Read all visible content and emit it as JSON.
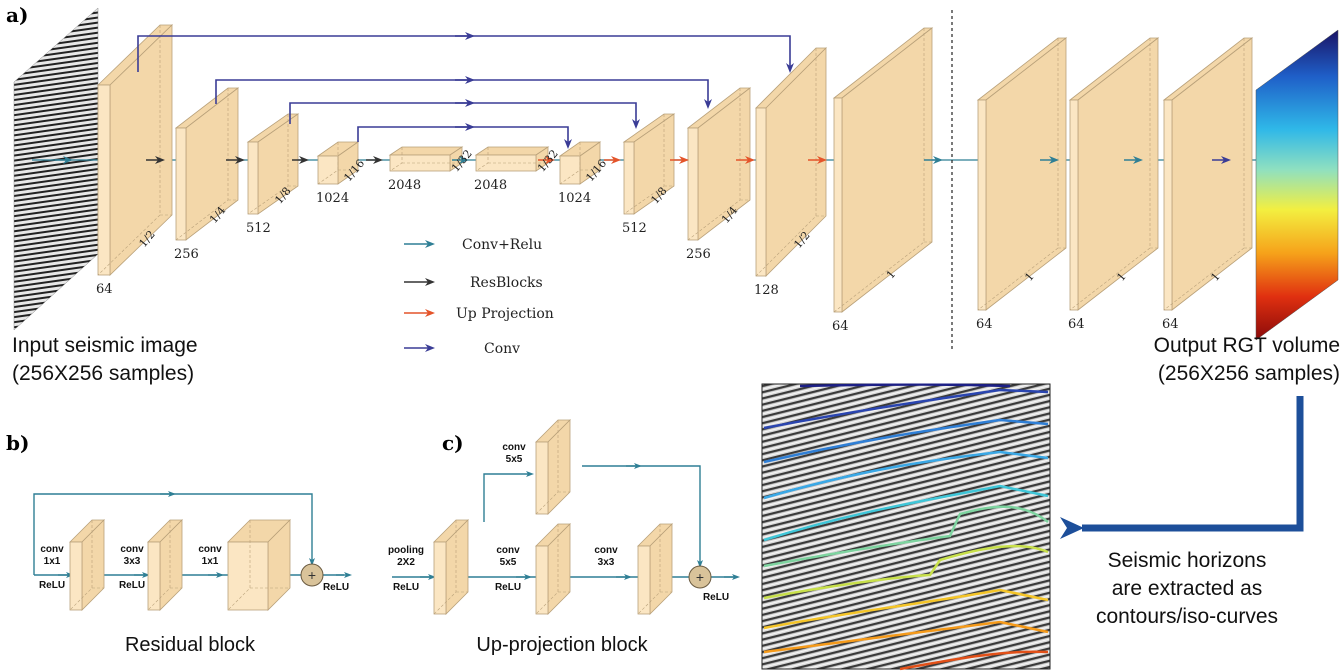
{
  "panel_labels": {
    "a": "a)",
    "b": "b)",
    "c": "c)"
  },
  "input_caption": [
    "Input seismic image",
    "(256X256 samples)"
  ],
  "output_caption": [
    "Output RGT volume",
    "(256X256 samples)"
  ],
  "horizon_caption": [
    "Seismic horizons",
    "are extracted as",
    "contours/iso-curves"
  ],
  "legend": [
    {
      "label": "Conv+Relu",
      "color": "#2f7f95"
    },
    {
      "label": "ResBlocks",
      "color": "#333333"
    },
    {
      "label": "Up Projection",
      "color": "#e4542a"
    },
    {
      "label": "Conv",
      "color": "#3a3c96"
    }
  ],
  "colors": {
    "block_face": "#fbe6c3",
    "block_side": "#f3d7a9",
    "block_edge": "#b9a17a",
    "skip": "#3a3c96",
    "conv_relu": "#2f7f95",
    "resblock": "#333333",
    "upproj": "#e4542a",
    "big_arrow": "#1d4f9a"
  },
  "block_labels": {
    "e1_ch": "64",
    "e1_sc": "1/2",
    "e2_ch": "256",
    "e2_sc": "1/4",
    "e3_ch": "512",
    "e3_sc": "1/8",
    "e4_ch": "1024",
    "e4_sc": "1/16",
    "e5_ch": "2048",
    "e5_sc": "1/32",
    "d5_ch": "2048",
    "d5_sc": "1/32",
    "d4_ch": "1024",
    "d4_sc": "1/16",
    "d3_ch": "512",
    "d3_sc": "1/8",
    "d2_ch": "256",
    "d2_sc": "1/4",
    "d1_ch": "128",
    "d1_sc": "1/2",
    "f1_ch": "64",
    "f1_sc": "1",
    "f2_ch": "64",
    "f2_sc": "1",
    "f3_ch": "64",
    "f3_sc": "1",
    "f4_ch": "64",
    "f4_sc": "1"
  },
  "residual": {
    "title": "Residual block",
    "conv1": [
      "conv",
      "1x1"
    ],
    "conv2": [
      "conv",
      "3x3"
    ],
    "conv3": [
      "conv",
      "1x1"
    ],
    "relu": "ReLU"
  },
  "upproj": {
    "title": "Up-projection block",
    "pool": [
      "pooling",
      "2X2"
    ],
    "top_conv": [
      "conv",
      "5x5"
    ],
    "mid_conv": [
      "conv",
      "5x5"
    ],
    "right_conv": [
      "conv",
      "3x3"
    ],
    "relu": "ReLU"
  }
}
